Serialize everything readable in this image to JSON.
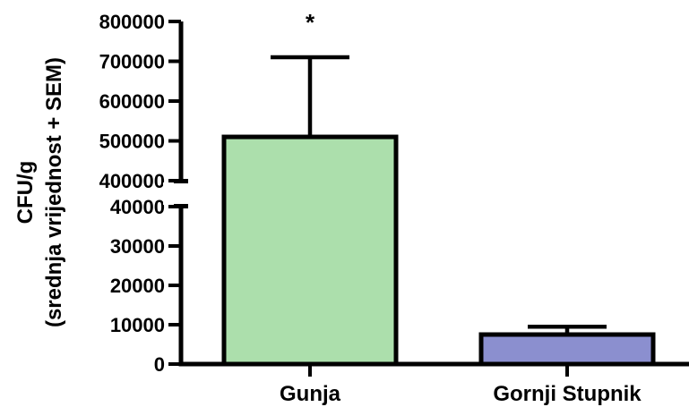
{
  "chart_data": {
    "type": "bar",
    "categories": [
      "Gunja",
      "Gornji Stupnik"
    ],
    "values": [
      510000,
      7500
    ],
    "error_plus": [
      200000,
      2000
    ],
    "colors": [
      "#acdfac",
      "#8b8fcf"
    ],
    "ylabel_line1": "CFU/g",
    "ylabel_line2": "(srednja vrijednost + SEM)",
    "y_scale": "broken",
    "y_segments": [
      {
        "range": [
          0,
          40000
        ],
        "ticks": [
          "0",
          "10000",
          "20000",
          "30000",
          "40000"
        ],
        "tick_values": [
          0,
          10000,
          20000,
          30000,
          40000
        ]
      },
      {
        "range": [
          400000,
          800000
        ],
        "ticks": [
          "400000",
          "500000",
          "600000",
          "700000",
          "800000"
        ],
        "tick_values": [
          400000,
          500000,
          600000,
          700000,
          800000
        ]
      }
    ],
    "annotations": [
      {
        "category": "Gunja",
        "text": "*"
      }
    ],
    "grid": false,
    "legend": "none"
  }
}
